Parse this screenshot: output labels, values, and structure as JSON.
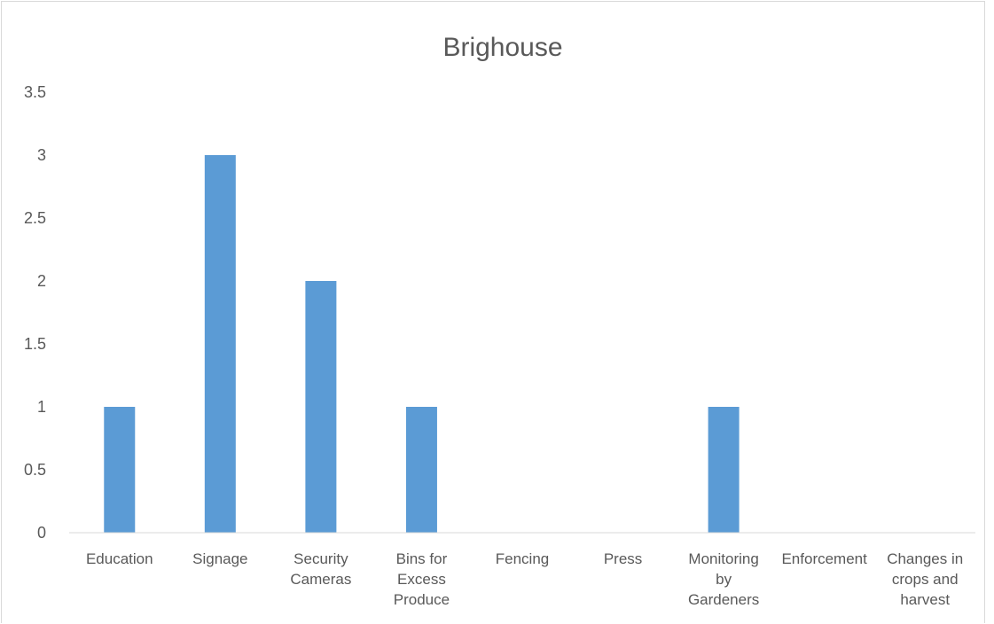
{
  "chart_data": {
    "type": "bar",
    "title": "Brighouse",
    "xlabel": "",
    "ylabel": "",
    "categories": [
      "Education",
      "Signage",
      "Security Cameras",
      "Bins for Excess Produce",
      "Fencing",
      "Press",
      "Monitoring by Gardeners",
      "Enforcement",
      "Changes in crops and harvest"
    ],
    "category_lines": [
      [
        "Education"
      ],
      [
        "Signage"
      ],
      [
        "Security",
        "Cameras"
      ],
      [
        "Bins for",
        "Excess",
        "Produce"
      ],
      [
        "Fencing"
      ],
      [
        "Press"
      ],
      [
        "Monitoring",
        "by",
        "Gardeners"
      ],
      [
        "Enforcement"
      ],
      [
        "Changes in",
        "crops and",
        "harvest"
      ]
    ],
    "values": [
      1,
      3,
      2,
      1,
      0,
      0,
      1,
      0,
      0
    ],
    "ylim": [
      0,
      3.5
    ],
    "yticks": [
      "0",
      "0.5",
      "1",
      "1.5",
      "2",
      "2.5",
      "3",
      "3.5"
    ],
    "grid": false,
    "legend": "none",
    "bar_color": "#5b9bd5",
    "axis_color": "#d9d9d9",
    "text_color": "#595959"
  }
}
